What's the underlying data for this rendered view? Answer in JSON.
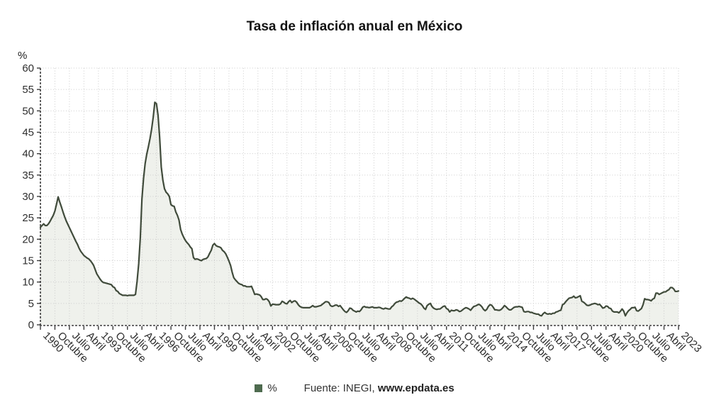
{
  "page": {
    "title": "Tasa de inflación anual en México"
  },
  "legend": {
    "series_label": "%",
    "source_prefix": "Fuente: INEGI, ",
    "source_site": "www.epdata.es"
  },
  "chart_data": {
    "type": "area",
    "title": "Tasa de inflación anual en México",
    "unit_label": "%",
    "series_name": "%",
    "x_description": "Monthly annual inflation rate, Mexico, January 1990 - January 2023, one point per month",
    "tick_every_months": 9,
    "x_tick_labels": [
      "1990",
      "Octubre",
      "Julio",
      "Abril",
      "1993",
      "Octubre",
      "Julio",
      "Abril",
      "1996",
      "Octubre",
      "Julio",
      "Abril",
      "1999",
      "Octubre",
      "Julio",
      "Abril",
      "2002",
      "Octubre",
      "Julio",
      "Abril",
      "2005",
      "Octubre",
      "Julio",
      "Abril",
      "2008",
      "Octubre",
      "Julio",
      "Abril",
      "2011",
      "Octubre",
      "Julio",
      "Abril",
      "2014",
      "Octubre",
      "Julio",
      "Abril",
      "2017",
      "Octubre",
      "Julio",
      "Abril",
      "2020",
      "Octubre",
      "Julio",
      "Abril",
      "2023"
    ],
    "y_ticks": [
      0,
      5,
      10,
      15,
      20,
      25,
      30,
      35,
      40,
      45,
      50,
      55,
      60
    ],
    "ylim": [
      0,
      60
    ],
    "grid": true,
    "legend_position": "bottom",
    "values": [
      22.8,
      23.2,
      23.6,
      23.2,
      23.2,
      23.6,
      24.2,
      24.9,
      25.6,
      26.6,
      28.2,
      29.9,
      28.7,
      27.6,
      26.4,
      25.3,
      24.3,
      23.5,
      22.7,
      21.9,
      21.1,
      20.3,
      19.5,
      18.8,
      17.9,
      17.2,
      16.7,
      16.2,
      15.9,
      15.6,
      15.4,
      15.0,
      14.5,
      13.9,
      12.9,
      11.9,
      11.3,
      10.7,
      10.2,
      9.9,
      9.8,
      9.7,
      9.6,
      9.5,
      9.4,
      8.9,
      8.7,
      8.0,
      7.8,
      7.3,
      7.1,
      6.9,
      6.9,
      6.9,
      6.8,
      6.9,
      6.9,
      6.9,
      6.9,
      7.1,
      10.2,
      14.3,
      20.4,
      29.4,
      34.2,
      37.7,
      39.9,
      41.6,
      43.5,
      45.7,
      48.5,
      52.0,
      51.7,
      49.0,
      43.8,
      36.9,
      33.8,
      31.8,
      31.0,
      30.6,
      30.0,
      28.1,
      27.8,
      27.7,
      26.4,
      25.6,
      24.5,
      22.3,
      21.2,
      20.4,
      19.7,
      19.2,
      18.8,
      18.2,
      17.8,
      15.7,
      15.3,
      15.4,
      15.3,
      15.1,
      15.0,
      15.3,
      15.4,
      15.5,
      15.9,
      16.7,
      17.4,
      18.6,
      19.0,
      18.5,
      18.3,
      18.2,
      18.0,
      17.4,
      17.1,
      16.6,
      15.8,
      14.9,
      13.9,
      12.3,
      11.0,
      10.5,
      10.1,
      9.7,
      9.5,
      9.4,
      9.1,
      9.1,
      8.9,
      8.9,
      8.9,
      9.0,
      8.1,
      7.1,
      7.2,
      7.1,
      7.0,
      6.6,
      5.9,
      5.9,
      6.1,
      5.9,
      5.4,
      4.4,
      4.8,
      4.8,
      4.7,
      4.7,
      4.7,
      4.9,
      5.5,
      5.3,
      5.0,
      4.9,
      5.4,
      5.7,
      5.2,
      5.5,
      5.6,
      5.3,
      4.7,
      4.3,
      4.1,
      4.0,
      4.0,
      4.0,
      4.0,
      4.0,
      4.2,
      4.5,
      4.2,
      4.2,
      4.3,
      4.4,
      4.5,
      4.8,
      5.1,
      5.4,
      5.4,
      5.2,
      4.5,
      4.3,
      4.4,
      4.6,
      4.6,
      4.3,
      4.5,
      4.0,
      3.5,
      3.1,
      2.9,
      3.3,
      3.9,
      3.8,
      3.4,
      3.2,
      3.0,
      3.2,
      3.1,
      3.5,
      4.1,
      4.3,
      4.1,
      4.1,
      4.0,
      4.1,
      4.2,
      4.0,
      4.0,
      4.0,
      4.1,
      4.0,
      3.8,
      3.7,
      3.9,
      3.8,
      3.7,
      3.7,
      4.2,
      4.5,
      5.0,
      5.3,
      5.4,
      5.6,
      5.5,
      5.8,
      6.2,
      6.5,
      6.3,
      6.2,
      6.0,
      6.2,
      6.0,
      5.7,
      5.4,
      5.1,
      4.9,
      4.5,
      3.9,
      3.6,
      4.5,
      4.8,
      5.0,
      4.3,
      3.9,
      3.7,
      3.6,
      3.7,
      3.7,
      4.0,
      4.3,
      4.4,
      3.8,
      3.6,
      3.0,
      3.4,
      3.3,
      3.3,
      3.5,
      3.4,
      3.1,
      3.2,
      3.5,
      3.8,
      4.0,
      3.9,
      3.7,
      3.4,
      3.9,
      4.3,
      4.4,
      4.6,
      4.8,
      4.6,
      4.2,
      3.6,
      3.3,
      3.6,
      4.3,
      4.7,
      4.6,
      4.1,
      3.5,
      3.5,
      3.4,
      3.4,
      3.6,
      4.0,
      4.5,
      4.2,
      3.8,
      3.5,
      3.5,
      3.8,
      4.1,
      4.2,
      4.2,
      4.3,
      4.2,
      4.1,
      3.1,
      3.0,
      3.1,
      3.1,
      2.9,
      2.9,
      2.7,
      2.6,
      2.5,
      2.5,
      2.2,
      2.1,
      2.6,
      2.9,
      2.6,
      2.5,
      2.6,
      2.5,
      2.7,
      2.7,
      3.0,
      3.1,
      3.3,
      3.4,
      4.7,
      4.9,
      5.4,
      5.8,
      6.2,
      6.3,
      6.4,
      6.7,
      6.3,
      6.4,
      6.6,
      6.8,
      5.5,
      5.3,
      5.0,
      4.6,
      4.5,
      4.6,
      4.8,
      4.9,
      5.0,
      4.9,
      4.7,
      4.8,
      4.4,
      3.9,
      4.0,
      4.4,
      4.3,
      3.9,
      3.8,
      3.2,
      3.0,
      3.0,
      3.0,
      2.8,
      3.2,
      3.7,
      3.2,
      2.1,
      2.8,
      3.3,
      3.6,
      4.0,
      4.0,
      4.1,
      3.3,
      3.2,
      3.5,
      3.8,
      4.7,
      6.1,
      5.9,
      5.9,
      5.8,
      5.6,
      6.0,
      6.2,
      7.4,
      7.4,
      7.1,
      7.3,
      7.5,
      7.7,
      7.7,
      8.0,
      8.2,
      8.7,
      8.7,
      8.4,
      7.8,
      7.8,
      7.9
    ],
    "colors": {
      "line": "#404b3b",
      "fill": "#eff1ec",
      "legend_square": "#4e6b4f",
      "grid": "#cbcbcb",
      "axis": "#3b3b3b",
      "tick_text": "#2e2e2e",
      "title_text": "#141414"
    }
  }
}
